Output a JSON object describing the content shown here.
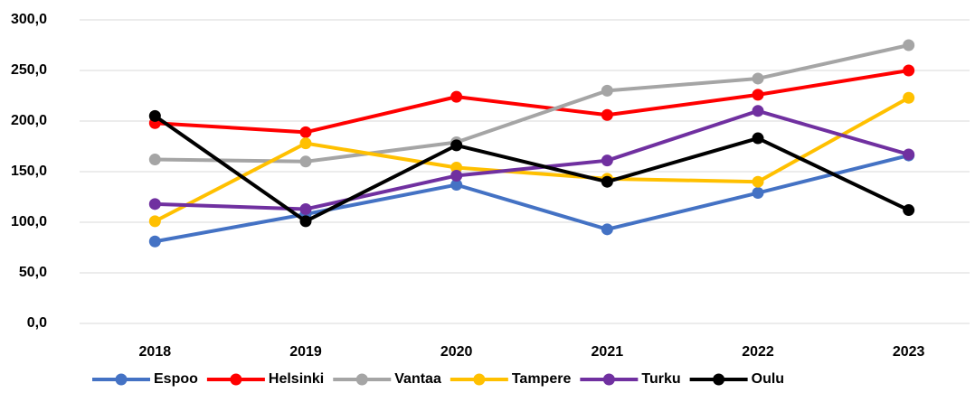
{
  "chart_data": {
    "type": "line",
    "categories": [
      "2018",
      "2019",
      "2020",
      "2021",
      "2022",
      "2023"
    ],
    "series": [
      {
        "name": "Espoo",
        "color": "#4472c4",
        "values": [
          81,
          108,
          137,
          93,
          129,
          166
        ]
      },
      {
        "name": "Helsinki",
        "color": "#ff0000",
        "values": [
          198,
          189,
          224,
          206,
          226,
          250
        ]
      },
      {
        "name": "Vantaa",
        "color": "#a5a5a5",
        "values": [
          162,
          160,
          179,
          230,
          242,
          275
        ]
      },
      {
        "name": "Tampere",
        "color": "#ffc000",
        "values": [
          101,
          178,
          154,
          143,
          140,
          223
        ]
      },
      {
        "name": "Turku",
        "color": "#7030a0",
        "values": [
          118,
          113,
          146,
          161,
          210,
          167
        ]
      },
      {
        "name": "Oulu",
        "color": "#000000",
        "values": [
          205,
          101,
          176,
          140,
          183,
          112
        ]
      }
    ],
    "ylim": [
      0,
      300
    ],
    "yticks": [
      {
        "value": 0,
        "label": "0,0"
      },
      {
        "value": 50,
        "label": "50,0"
      },
      {
        "value": 100,
        "label": "100,0"
      },
      {
        "value": 150,
        "label": "150,0"
      },
      {
        "value": 200,
        "label": "200,0"
      },
      {
        "value": 250,
        "label": "250,0"
      },
      {
        "value": 300,
        "label": "300,0"
      }
    ],
    "grid": true,
    "legend": "bottom"
  }
}
